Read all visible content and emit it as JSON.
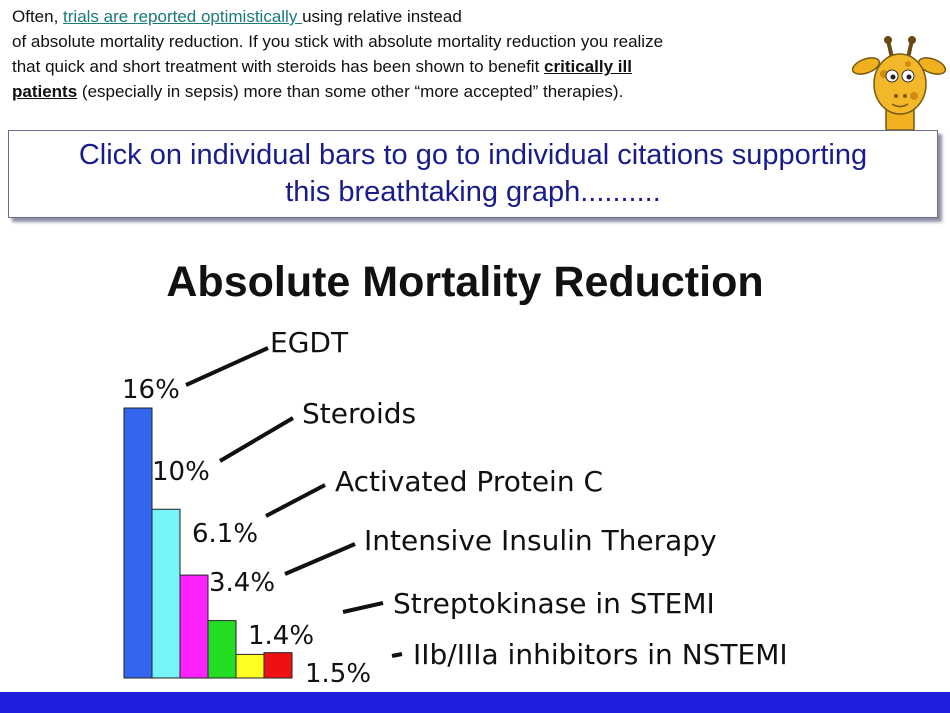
{
  "intro": {
    "line1_prefix": "Often, ",
    "line1_link": "trials are reported optimistically ",
    "line1_suffix": "using relative instead",
    "line2": "of absolute mortality reduction.  If you stick with absolute mortality reduction you realize",
    "line3_prefix": "that quick and short treatment with steroids has been shown to benefit ",
    "line3_bold": "critically ill",
    "line4_bold": "patients",
    "line4_suffix": " (especially in sepsis) more than some other “more accepted” therapies)."
  },
  "callout": {
    "line1": "Click on individual bars to go to individual citations supporting",
    "line2": "this breathtaking graph.........."
  },
  "chart_data": {
    "type": "bar",
    "title": "Absolute Mortality Reduction",
    "categories": [
      "EGDT",
      "Steroids",
      "Activated Protein C",
      "Intensive Insulin Therapy",
      "Streptokinase in STEMI",
      "IIb/IIIa inhibitors in NSTEMI"
    ],
    "values": [
      16,
      10,
      6.1,
      3.4,
      1.4,
      1.5
    ],
    "value_labels": [
      "16%",
      "10%",
      "6.1%",
      "3.4%",
      "1.4%",
      "1.5%"
    ],
    "colors": [
      "#3366ee",
      "#77f4f7",
      "#ff22ff",
      "#22dd22",
      "#ffff22",
      "#ee1111"
    ],
    "ylim": [
      0,
      16
    ],
    "grid": false,
    "legend": "none",
    "xlabel": "",
    "ylabel": ""
  },
  "colors": {
    "bottom_bar": "#1f1fdd",
    "callout_text": "#1a1c8c",
    "link": "#1a7a7a"
  },
  "icons": {
    "mascot": "giraffe-icon"
  }
}
